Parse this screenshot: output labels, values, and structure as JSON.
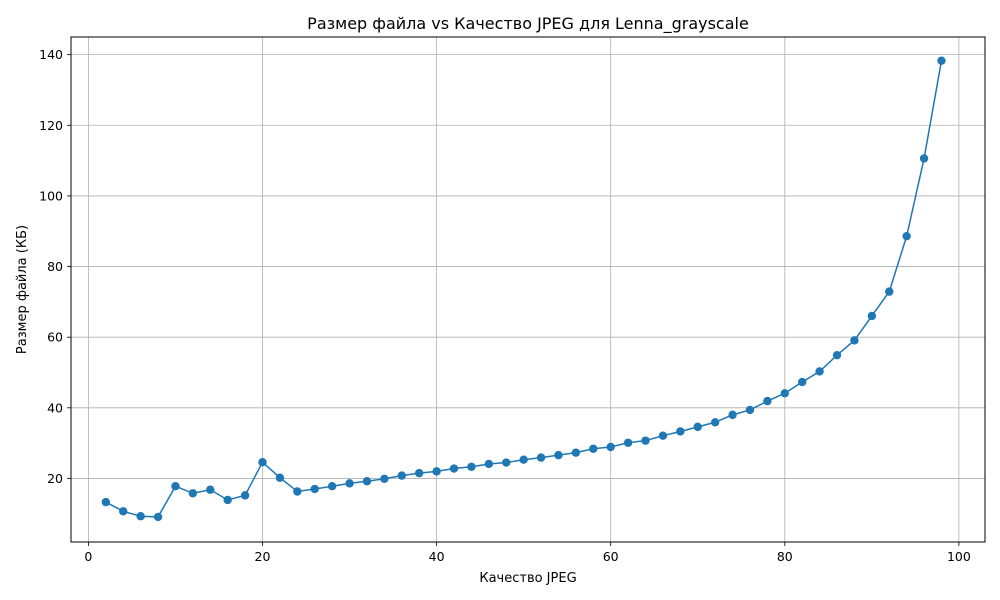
{
  "chart_data": {
    "type": "line",
    "title": "Размер файла vs Качество JPEG для Lenna_grayscale",
    "xlabel": "Качество JPEG",
    "ylabel": "Размер файла (КБ)",
    "xlim": [
      -2,
      103
    ],
    "ylim": [
      2,
      145
    ],
    "xticks": [
      0,
      20,
      40,
      60,
      80,
      100
    ],
    "yticks": [
      20,
      40,
      60,
      80,
      100,
      120,
      140
    ],
    "grid": true,
    "series": [
      {
        "color": "#1f77b4",
        "marker": "circle",
        "x": [
          2,
          4,
          6,
          8,
          10,
          12,
          14,
          16,
          18,
          20,
          22,
          24,
          26,
          28,
          30,
          32,
          34,
          36,
          38,
          40,
          42,
          44,
          46,
          48,
          50,
          52,
          54,
          56,
          58,
          60,
          62,
          64,
          66,
          68,
          70,
          72,
          74,
          76,
          78,
          80,
          82,
          84,
          86,
          88,
          90,
          92,
          94,
          96,
          98
        ],
        "y": [
          13.3,
          10.7,
          9.3,
          9.1,
          17.8,
          15.8,
          16.8,
          13.9,
          15.2,
          24.6,
          20.2,
          16.3,
          17.0,
          17.8,
          18.6,
          19.2,
          19.9,
          20.8,
          21.5,
          22.0,
          22.8,
          23.3,
          24.1,
          24.5,
          25.3,
          25.9,
          26.6,
          27.3,
          28.4,
          28.9,
          30.1,
          30.7,
          32.1,
          33.3,
          34.6,
          35.9,
          38.0,
          39.4,
          41.9,
          44.1,
          47.3,
          50.3,
          54.9,
          59.1,
          66.0,
          72.9,
          88.6,
          110.6,
          138.3
        ]
      }
    ]
  }
}
